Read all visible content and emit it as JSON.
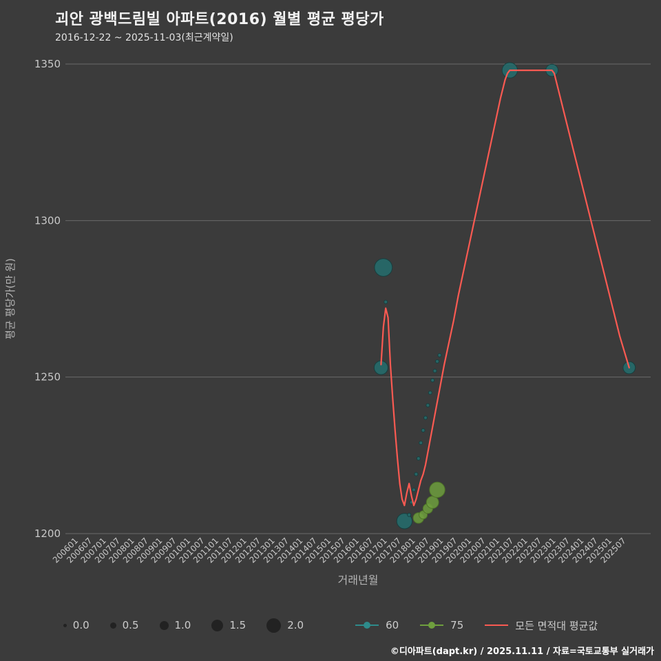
{
  "title": "괴안 광백드림빌 아파트(2016) 월별 평균 평당가",
  "subtitle": "2016-12-22 ~ 2025-11-03(최근계약일)",
  "footer": "©디아파트(dapt.kr) / 2025.11.11 / 자료=국토교통부 실거래가",
  "colors": {
    "background": "#3b3b3b",
    "grid": "#6b6b6b",
    "title_text": "#f2f2f2",
    "subtitle_text": "#e3e3e3",
    "tick_text": "#c9c9c9",
    "axis_label_text": "#b5b5b5",
    "legend_text": "#cccccc",
    "size_dot": "#222222",
    "series_60": "#256f6f",
    "series_75": "#6f9f3e",
    "avg_line": "#fa5a52",
    "footer_text": "#ffffff"
  },
  "legend": {
    "sizes": [
      {
        "label": "0.0",
        "size": 0.0
      },
      {
        "label": "0.5",
        "size": 0.5
      },
      {
        "label": "1.0",
        "size": 1.0
      },
      {
        "label": "1.5",
        "size": 1.5
      },
      {
        "label": "2.0",
        "size": 2.0
      }
    ],
    "series": [
      {
        "label": "60",
        "color": "#2e8b8b",
        "marker": "line-dot"
      },
      {
        "label": "75",
        "color": "#6f9f3e",
        "marker": "line-dot"
      },
      {
        "label": "모든 면적대 평균값",
        "color": "#fa5a52",
        "marker": "line"
      }
    ]
  },
  "chart_data": {
    "type": "scatter",
    "title": "괴안 광백드림빌 아파트(2016) 월별 평균 평당가",
    "xlabel": "거래년월",
    "ylabel": "평균 평당가(만 원)",
    "ylim": [
      1200,
      1350
    ],
    "y_ticks": [
      1350,
      1300,
      1250,
      1200
    ],
    "x_range": [
      "200601",
      "202511"
    ],
    "x_ticks": [
      "200601",
      "200607",
      "200701",
      "200707",
      "200801",
      "200807",
      "200901",
      "200907",
      "201001",
      "201007",
      "201101",
      "201107",
      "201201",
      "201207",
      "201301",
      "201307",
      "201401",
      "201407",
      "201501",
      "201507",
      "201601",
      "201607",
      "201701",
      "201707",
      "201801",
      "201807",
      "201901",
      "201907",
      "202001",
      "202007",
      "202101",
      "202107",
      "202201",
      "202207",
      "202301",
      "202307",
      "202401",
      "202407",
      "202501",
      "202507"
    ],
    "grid": "horizontal",
    "legend_position": "bottom",
    "series": [
      {
        "name": "60",
        "kind": "bubble",
        "color": "#256f6f",
        "stroke": "#173f3f",
        "points": [
          [
            "201612",
            1253,
            1.3
          ],
          [
            "201701",
            1285,
            1.8
          ],
          [
            "201702",
            1274,
            0.0
          ],
          [
            "201710",
            1204,
            1.5
          ],
          [
            "201712",
            1206,
            0.0
          ],
          [
            "201801",
            1210,
            0.0
          ],
          [
            "201802",
            1214,
            0.0
          ],
          [
            "201803",
            1219,
            0.0
          ],
          [
            "201804",
            1224,
            0.0
          ],
          [
            "201805",
            1229,
            0.0
          ],
          [
            "201806",
            1233,
            0.0
          ],
          [
            "201807",
            1237,
            0.0
          ],
          [
            "201808",
            1241,
            0.0
          ],
          [
            "201809",
            1245,
            0.0
          ],
          [
            "201810",
            1249,
            0.0
          ],
          [
            "201811",
            1252,
            0.0
          ],
          [
            "201812",
            1255,
            0.0
          ],
          [
            "201901",
            1257,
            0.0
          ],
          [
            "202107",
            1348,
            1.5
          ],
          [
            "202301",
            1348,
            1.1
          ],
          [
            "202510",
            1253,
            1.1
          ]
        ]
      },
      {
        "name": "75",
        "kind": "bubble",
        "color": "#6f9f3e",
        "stroke": "#4e7427",
        "points": [
          [
            "201804",
            1205,
            0.9
          ],
          [
            "201806",
            1206,
            0.6
          ],
          [
            "201808",
            1208,
            0.8
          ],
          [
            "201810",
            1210,
            1.1
          ],
          [
            "201812",
            1214,
            1.5
          ]
        ]
      },
      {
        "name": "모든 면적대 평균값",
        "kind": "line",
        "color": "#fa5a52",
        "points": [
          [
            "201612",
            1254
          ],
          [
            "201701",
            1266
          ],
          [
            "201702",
            1272
          ],
          [
            "201703",
            1269
          ],
          [
            "201704",
            1254
          ],
          [
            "201705",
            1243
          ],
          [
            "201706",
            1233
          ],
          [
            "201707",
            1224
          ],
          [
            "201708",
            1216
          ],
          [
            "201709",
            1211
          ],
          [
            "201710",
            1209
          ],
          [
            "201711",
            1213
          ],
          [
            "201712",
            1216
          ],
          [
            "201801",
            1212
          ],
          [
            "201802",
            1209
          ],
          [
            "201803",
            1211
          ],
          [
            "201804",
            1214
          ],
          [
            "201805",
            1217
          ],
          [
            "201806",
            1219
          ],
          [
            "201807",
            1222
          ],
          [
            "201808",
            1226
          ],
          [
            "201809",
            1230
          ],
          [
            "201810",
            1234
          ],
          [
            "201811",
            1238
          ],
          [
            "201812",
            1242
          ],
          [
            "201901",
            1246
          ],
          [
            "201902",
            1250
          ],
          [
            "201903",
            1254
          ],
          [
            "201905",
            1261
          ],
          [
            "201907",
            1268
          ],
          [
            "201909",
            1276
          ],
          [
            "201911",
            1283
          ],
          [
            "202001",
            1290
          ],
          [
            "202003",
            1297
          ],
          [
            "202005",
            1304
          ],
          [
            "202007",
            1311
          ],
          [
            "202009",
            1318
          ],
          [
            "202011",
            1325
          ],
          [
            "202101",
            1332
          ],
          [
            "202103",
            1339
          ],
          [
            "202105",
            1345
          ],
          [
            "202106",
            1347
          ],
          [
            "202107",
            1348
          ],
          [
            "202201",
            1348
          ],
          [
            "202301",
            1348
          ],
          [
            "202302",
            1347
          ],
          [
            "202304",
            1341
          ],
          [
            "202306",
            1335
          ],
          [
            "202308",
            1329
          ],
          [
            "202310",
            1323
          ],
          [
            "202312",
            1317
          ],
          [
            "202402",
            1311
          ],
          [
            "202404",
            1305
          ],
          [
            "202406",
            1299
          ],
          [
            "202408",
            1293
          ],
          [
            "202410",
            1287
          ],
          [
            "202412",
            1281
          ],
          [
            "202502",
            1275
          ],
          [
            "202504",
            1269
          ],
          [
            "202506",
            1263
          ],
          [
            "202508",
            1258
          ],
          [
            "202510",
            1253
          ]
        ]
      }
    ]
  }
}
